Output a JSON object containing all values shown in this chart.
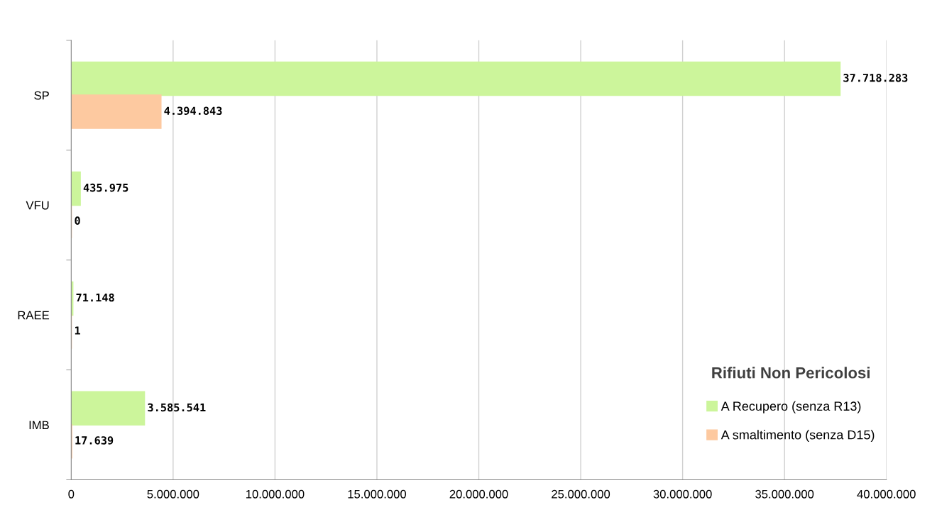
{
  "chart_data": {
    "type": "bar",
    "orientation": "horizontal",
    "categories": [
      "SP",
      "VFU",
      "RAEE",
      "IMB"
    ],
    "series": [
      {
        "name": "A Recupero (senza R13)",
        "color": "#ccf59b",
        "values": [
          37718283,
          435975,
          71148,
          3585541
        ],
        "value_labels": [
          "37.718.283",
          "435.975",
          "71.148",
          "3.585.541"
        ]
      },
      {
        "name": "A smaltimento (senza D15)",
        "color": "#fdc9a0",
        "values": [
          4394843,
          0,
          1,
          17639
        ],
        "value_labels": [
          "4.394.843",
          "0",
          "1",
          "17.639"
        ]
      }
    ],
    "xlim": [
      0,
      40000000
    ],
    "xticks": [
      0,
      {
        "value": 5000000,
        "label": "5.000.000"
      },
      {
        "value": 10000000,
        "label": "10.000.000"
      },
      {
        "value": 15000000,
        "label": "15.000.000"
      },
      {
        "value": 20000000,
        "label": "20.000.000"
      },
      {
        "value": 25000000,
        "label": "25.000.000"
      },
      {
        "value": 30000000,
        "label": "30.000.000"
      },
      {
        "value": 35000000,
        "label": "35.000.000"
      },
      {
        "value": 40000000,
        "label": "40.000.000"
      }
    ],
    "grid": "x",
    "legend": "bottom right",
    "legend_title": "Rifiuti Non Pericolosi"
  }
}
